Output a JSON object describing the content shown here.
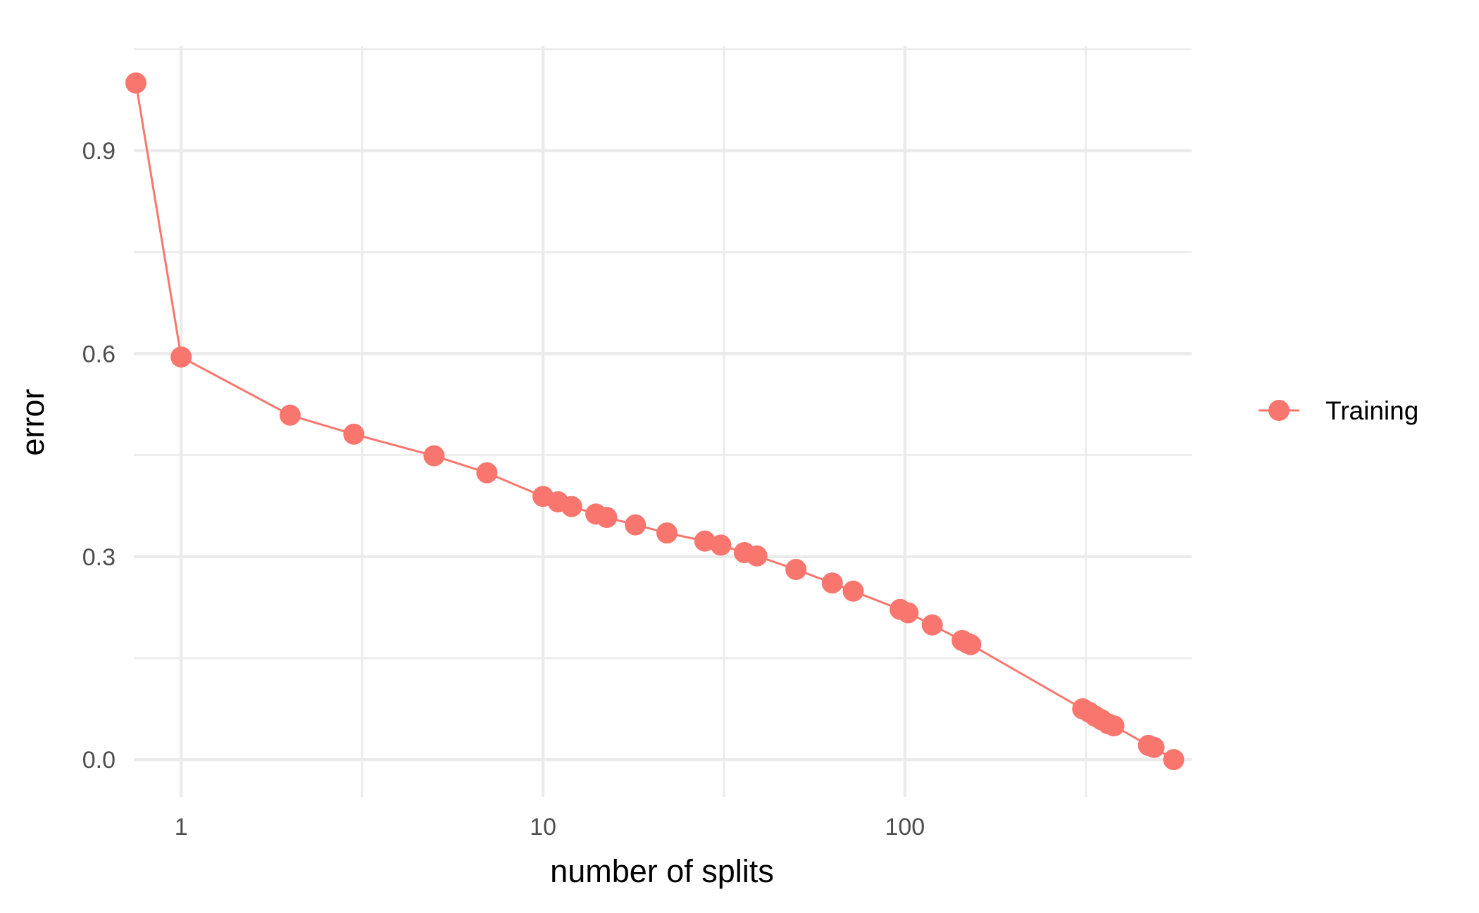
{
  "chart_data": {
    "type": "line",
    "x_scale": "log10",
    "xlabel": "number of splits",
    "ylabel": "error",
    "x_ticks": [
      1,
      10,
      100
    ],
    "x_tick_labels": [
      "1",
      "10",
      "100"
    ],
    "y_ticks": [
      0.0,
      0.3,
      0.6,
      0.9
    ],
    "y_tick_labels": [
      "0.0",
      "0.3",
      "0.6",
      "0.9"
    ],
    "xlim": [
      0.74,
      620
    ],
    "ylim": [
      -0.055,
      1.055
    ],
    "grid": true,
    "legend": {
      "position": "right"
    },
    "series": [
      {
        "name": "Training",
        "color": "#F8766D",
        "points": [
          [
            0.75,
            1.0
          ],
          [
            1,
            0.595
          ],
          [
            2,
            0.509
          ],
          [
            3,
            0.481
          ],
          [
            5,
            0.449
          ],
          [
            7,
            0.424
          ],
          [
            10,
            0.389
          ],
          [
            11,
            0.381
          ],
          [
            12,
            0.374
          ],
          [
            14,
            0.363
          ],
          [
            15,
            0.358
          ],
          [
            18,
            0.347
          ],
          [
            22,
            0.335
          ],
          [
            28,
            0.323
          ],
          [
            31,
            0.317
          ],
          [
            36,
            0.306
          ],
          [
            39,
            0.301
          ],
          [
            50,
            0.281
          ],
          [
            63,
            0.261
          ],
          [
            72,
            0.249
          ],
          [
            97,
            0.222
          ],
          [
            102,
            0.217
          ],
          [
            119,
            0.199
          ],
          [
            144,
            0.176
          ],
          [
            149,
            0.172
          ],
          [
            152,
            0.17
          ],
          [
            310,
            0.075
          ],
          [
            323,
            0.07
          ],
          [
            336,
            0.064
          ],
          [
            349,
            0.059
          ],
          [
            364,
            0.053
          ],
          [
            378,
            0.05
          ],
          [
            471,
            0.021
          ],
          [
            488,
            0.018
          ],
          [
            553,
            0.0
          ]
        ]
      }
    ]
  }
}
